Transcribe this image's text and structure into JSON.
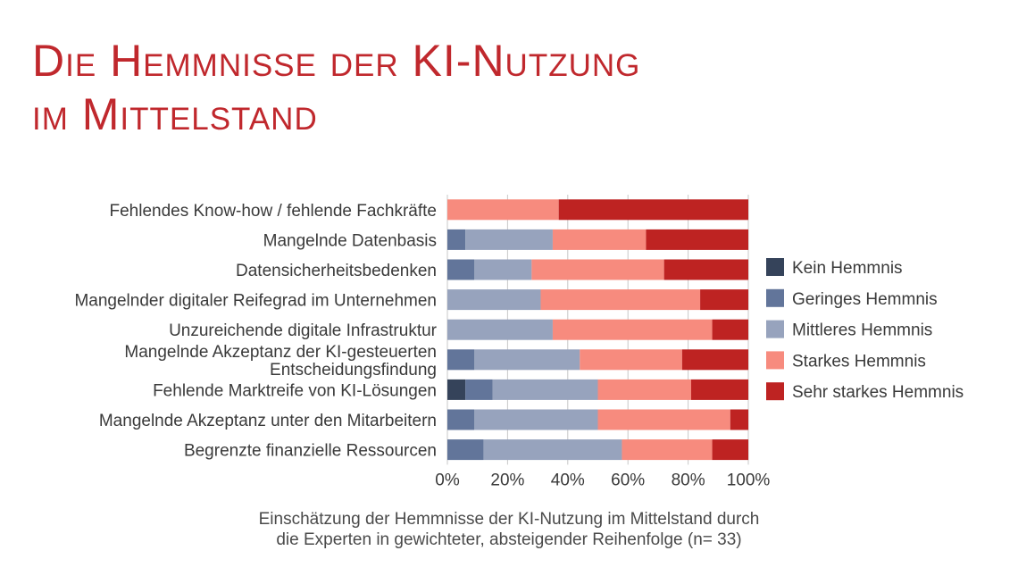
{
  "title": {
    "line1": "Die Hemmnisse der KI-Nutzung",
    "line2": "im Mittelstand"
  },
  "caption": {
    "line1": "Einschätzung der Hemmnisse der KI-Nutzung im Mittelstand durch",
    "line2": "die Experten in gewichteter, absteigender Reihenfolge (n= 33)"
  },
  "chart_data": {
    "type": "bar",
    "orientation": "horizontal",
    "stacked": "percent",
    "categories": [
      [
        "Fehlendes Know-how / fehlende Fachkräfte"
      ],
      [
        "Mangelnde Datenbasis"
      ],
      [
        "Datensicherheitsbedenken"
      ],
      [
        "Mangelnder digitaler Reifegrad im Unternehmen"
      ],
      [
        "Unzureichende digitale Infrastruktur"
      ],
      [
        "Mangelnde Akzeptanz der KI-gesteuerten",
        "Entscheidungsfindung"
      ],
      [
        "Fehlende Marktreife von KI-Lösungen"
      ],
      [
        "Mangelnde Akzeptanz unter den Mitarbeitern"
      ],
      [
        "Begrenzte finanzielle Ressourcen"
      ]
    ],
    "series": [
      {
        "name": "Kein Hemmnis",
        "color": "#35435a",
        "values": [
          0,
          0,
          0,
          0,
          0,
          0,
          6,
          0,
          0
        ]
      },
      {
        "name": "Geringes Hemmnis",
        "color": "#62759a",
        "values": [
          0,
          6,
          9,
          0,
          0,
          9,
          9,
          9,
          12
        ]
      },
      {
        "name": "Mittleres Hemmnis",
        "color": "#97a3bd",
        "values": [
          0,
          29,
          19,
          31,
          35,
          35,
          35,
          41,
          46
        ]
      },
      {
        "name": "Starkes Hemmnis",
        "color": "#f78b7e",
        "values": [
          37,
          31,
          44,
          53,
          53,
          34,
          31,
          44,
          30
        ]
      },
      {
        "name": "Sehr starkes Hemmnis",
        "color": "#be2322",
        "values": [
          63,
          34,
          28,
          16,
          12,
          22,
          19,
          6,
          12
        ]
      }
    ],
    "xlim": [
      0,
      100
    ],
    "xticks": [
      "0%",
      "20%",
      "40%",
      "60%",
      "80%",
      "100%"
    ],
    "grid": true,
    "legend": "right"
  }
}
